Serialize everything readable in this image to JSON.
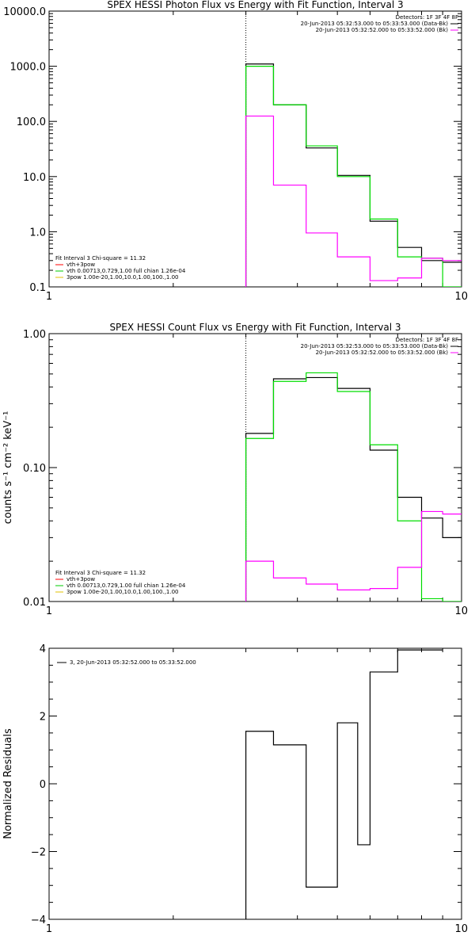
{
  "chart_data": [
    {
      "type": "line",
      "title": "SPEX HESSI Photon Flux vs Energy with Fit Function, Interval 3",
      "xscale": "log",
      "yscale": "log",
      "xlim": [
        1,
        10
      ],
      "ylim": [
        0.1,
        10000
      ],
      "xticks": [
        1,
        10
      ],
      "yticks": [
        {
          "v": 0.1,
          "label": "0.1"
        },
        {
          "v": 1,
          "label": "1.0"
        },
        {
          "v": 10,
          "label": "10.0"
        },
        {
          "v": 100,
          "label": "100.0"
        },
        {
          "v": 1000,
          "label": "1000.0"
        },
        {
          "v": 10000,
          "label": "10000.0"
        }
      ],
      "vline_x": 3,
      "top_legend": {
        "header": "Detectors: 1F 3F 4F 8F",
        "rows": [
          {
            "text": "20-Jun-2013 05:32:53.000 to 05:33:53.000 (Data-Bk)",
            "color": "#000000"
          },
          {
            "text": "20-Jun-2013 05:32:52.000 to 05:33:52.000 (Bk)",
            "color": "#ff00ff"
          }
        ]
      },
      "bottom_legend": {
        "header": "Fit Interval  3   Chi-square = 11.32",
        "rows": [
          {
            "text": "vth+3pow",
            "color": "#ff0000"
          },
          {
            "text": "vth 0.00713,0.729,1.00  full chian 1.26e-04",
            "color": "#00cc00"
          },
          {
            "text": "3pow 1.00e-20,1.00,10.0,1.00,100.,1.00",
            "color": "#e0c000"
          }
        ]
      },
      "series": [
        {
          "color": "#000000",
          "edges": [
            3,
            3.5,
            4.2,
            5,
            6,
            7,
            8,
            9,
            10
          ],
          "values": [
            1100,
            200,
            33,
            10.5,
            1.55,
            0.52,
            0.3,
            0.28
          ]
        },
        {
          "color": "#00dd00",
          "edges": [
            3,
            3.5,
            4.2,
            5,
            6,
            7,
            8,
            9,
            10
          ],
          "values": [
            1000,
            200,
            36,
            10,
            1.7,
            0.35,
            0.33,
            0.1
          ]
        },
        {
          "color": "#ff00ff",
          "edges": [
            3,
            3.5,
            4.2,
            5,
            6,
            7,
            8,
            9,
            10
          ],
          "values": [
            125,
            7,
            0.95,
            0.35,
            0.13,
            0.145,
            0.33,
            0.3
          ]
        }
      ]
    },
    {
      "type": "line",
      "title": "SPEX HESSI Count Flux vs Energy with Fit Function, Interval 3",
      "ylabel": "counts s⁻¹ cm⁻² keV⁻¹",
      "xscale": "log",
      "yscale": "log",
      "xlim": [
        1,
        10
      ],
      "ylim": [
        0.01,
        1
      ],
      "xticks": [
        1,
        10
      ],
      "yticks": [
        {
          "v": 0.01,
          "label": "0.01"
        },
        {
          "v": 0.1,
          "label": "0.10"
        },
        {
          "v": 1,
          "label": "1.00"
        }
      ],
      "vline_x": 3,
      "top_legend": {
        "header": "Detectors: 1F 3F 4F 8F",
        "rows": [
          {
            "text": "20-Jun-2013 05:32:53.000 to 05:33:53.000 (Data-Bk)",
            "color": "#000000"
          },
          {
            "text": "20-Jun-2013 05:32:52.000 to 05:33:52.000 (Bk)",
            "color": "#ff00ff"
          }
        ]
      },
      "bottom_legend": {
        "header": "Fit Interval  3   Chi-square = 11.32",
        "rows": [
          {
            "text": "vth+3pow",
            "color": "#ff0000"
          },
          {
            "text": "vth 0.00713,0.729,1.00  full chian 1.26e-04",
            "color": "#00cc00"
          },
          {
            "text": "3pow 1.00e-20,1.00,10.0,1.00,100.,1.00",
            "color": "#e0c000"
          }
        ]
      },
      "series": [
        {
          "color": "#000000",
          "edges": [
            3,
            3.5,
            4.2,
            5,
            6,
            7,
            8,
            9,
            10
          ],
          "values": [
            0.18,
            0.46,
            0.47,
            0.39,
            0.135,
            0.06,
            0.042,
            0.03
          ]
        },
        {
          "color": "#00dd00",
          "edges": [
            3,
            3.5,
            4.2,
            5,
            6,
            7,
            8,
            9,
            10
          ],
          "values": [
            0.165,
            0.44,
            0.51,
            0.37,
            0.148,
            0.04,
            0.0105,
            0.01
          ]
        },
        {
          "color": "#ff00ff",
          "edges": [
            3,
            3.5,
            4.2,
            5,
            6,
            7,
            8,
            9,
            10
          ],
          "values": [
            0.02,
            0.015,
            0.0135,
            0.0122,
            0.0125,
            0.018,
            0.047,
            0.045
          ]
        }
      ]
    },
    {
      "type": "line",
      "ylabel": "Normalized Residuals",
      "xscale": "log",
      "yscale": "linear",
      "xlim": [
        1,
        10
      ],
      "ylim": [
        -4,
        4
      ],
      "xticks": [
        1,
        10
      ],
      "yticks": [
        {
          "v": -4,
          "label": "−4"
        },
        {
          "v": -2,
          "label": "−2"
        },
        {
          "v": 0,
          "label": "0"
        },
        {
          "v": 2,
          "label": "2"
        },
        {
          "v": 4,
          "label": "4"
        }
      ],
      "legend": {
        "rows": [
          {
            "text": "3, 20-Jun-2013 05:32:52.000 to 05:33:52.000",
            "color": "#000000"
          }
        ]
      },
      "series": [
        {
          "color": "#000000",
          "edges": [
            3,
            3.5,
            4.2,
            5,
            5.6,
            6,
            7,
            8,
            9
          ],
          "values": [
            1.55,
            1.15,
            -3.05,
            1.8,
            -1.8,
            3.3,
            3.95,
            3.95
          ]
        }
      ]
    }
  ]
}
